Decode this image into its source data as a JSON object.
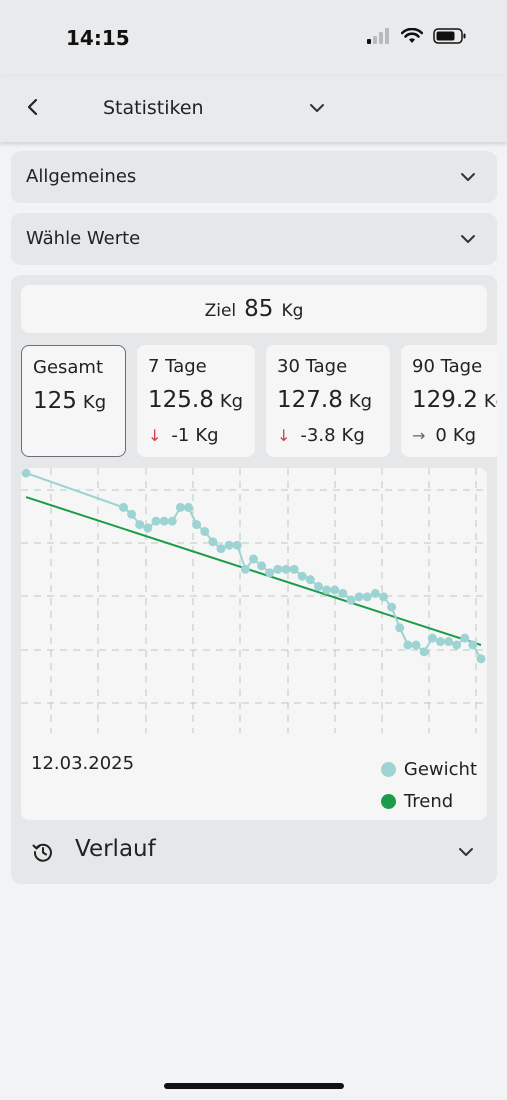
{
  "status_bar": {
    "time": "14:15"
  },
  "app_bar": {
    "title": "Statistiken"
  },
  "dropdowns": [
    {
      "label": "Allgemeines"
    },
    {
      "label": "Wähle Werte"
    }
  ],
  "goal": {
    "label": "Ziel",
    "value": "85",
    "unit": "Kg"
  },
  "cards": [
    {
      "label": "Gesamt",
      "value": "125",
      "unit": "Kg",
      "delta": "",
      "arrow": ""
    },
    {
      "label": "7 Tage",
      "value": "125.8",
      "unit": "Kg",
      "delta": "-1",
      "delta_unit": "Kg",
      "arrow": "↓"
    },
    {
      "label": "30 Tage",
      "value": "127.8",
      "unit": "Kg",
      "delta": "-3.8",
      "delta_unit": "Kg",
      "arrow": "↓"
    },
    {
      "label": "90 Tage",
      "value": "129.2",
      "unit": "Kg",
      "delta": "0",
      "delta_unit": "Kg",
      "arrow": "→"
    }
  ],
  "chart": {
    "start_date": "12.03.2025",
    "legend": [
      {
        "name": "Gewicht",
        "color": "#9ed3d3"
      },
      {
        "name": "Trend",
        "color": "#1a9c4a"
      }
    ]
  },
  "chart_data": {
    "type": "line",
    "xlabel": "",
    "ylabel": "",
    "ylim": [
      124.4,
      131.9
    ],
    "grid": true,
    "legend_position": "bottom-right",
    "series": [
      {
        "name": "Gewicht",
        "color": "#9ed3d3",
        "x": [
          0,
          12,
          13,
          14,
          15,
          16,
          17,
          18,
          19,
          20,
          21,
          22,
          23,
          24,
          25,
          26,
          27,
          28,
          29,
          30,
          31,
          32,
          33,
          34,
          35,
          36,
          37,
          38,
          39,
          40,
          41,
          42,
          43,
          44,
          45,
          46,
          47,
          48,
          49,
          50,
          51,
          52,
          53,
          54,
          55,
          56
        ],
        "y": [
          131.9,
          130.9,
          130.7,
          130.4,
          130.3,
          130.5,
          130.5,
          130.5,
          130.9,
          130.9,
          130.4,
          130.2,
          129.9,
          129.7,
          129.8,
          129.8,
          129.1,
          129.4,
          129.2,
          129.0,
          129.1,
          129.1,
          129.1,
          128.9,
          128.8,
          128.6,
          128.5,
          128.5,
          128.4,
          128.2,
          128.3,
          128.3,
          128.4,
          128.3,
          128.0,
          127.4,
          126.9,
          126.9,
          126.7,
          127.1,
          127.0,
          127.0,
          126.9,
          127.1,
          126.9,
          126.5
        ]
      },
      {
        "name": "Trend",
        "color": "#1a9c4a",
        "x": [
          0,
          56
        ],
        "y": [
          131.2,
          126.9
        ]
      }
    ]
  }
}
